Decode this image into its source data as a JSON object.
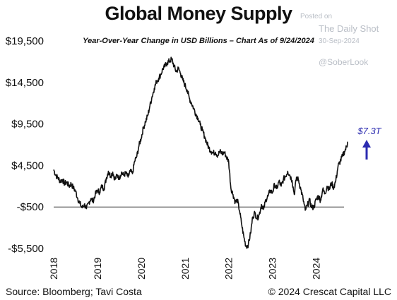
{
  "title": "Global Money Supply",
  "subtitle": "Year-Over-Year Change in USD Billions – Chart As of 9/24/2024",
  "watermark": {
    "posted_on": "Posted on",
    "publisher": "The Daily Shot",
    "date": "30-Sep-2024",
    "handle": "@SoberLook"
  },
  "footer": {
    "source": "Source: Bloomberg; Tavi Costa",
    "copyright": "© 2024 Crescat Capital LLC"
  },
  "colors": {
    "line": "#111111",
    "zero_line": "#333333",
    "annotation": "#2b2bb0"
  },
  "chart_data": {
    "type": "line",
    "title": "Global Money Supply",
    "subtitle": "Year-Over-Year Change in USD Billions – Chart As of 9/24/2024",
    "xlabel": "",
    "ylabel": "",
    "ylim": [
      -5500,
      19500
    ],
    "xlim": [
      2018.0,
      2024.75
    ],
    "y_ticks": [
      -5500,
      -500,
      4500,
      9500,
      14500,
      19500
    ],
    "y_tick_labels": [
      "-$5,500",
      "-$500",
      "$4,500",
      "$9,500",
      "$14,500",
      "$19,500"
    ],
    "x_ticks": [
      2018,
      2019,
      2020,
      2021,
      2022,
      2023,
      2024
    ],
    "x_tick_labels": [
      "2018",
      "2019",
      "2020",
      "2021",
      "2022",
      "2023",
      "2024"
    ],
    "reference_line": {
      "y": -500
    },
    "grid": false,
    "annotation": {
      "text": "$7.3T",
      "arrow": "up",
      "x": 2024.72,
      "y": 7300
    },
    "series": [
      {
        "x": [
          2018.0,
          2018.05,
          2018.1,
          2018.15,
          2018.2,
          2018.25,
          2018.3,
          2018.35,
          2018.4,
          2018.45,
          2018.5,
          2018.55,
          2018.6,
          2018.65,
          2018.7,
          2018.75,
          2018.8,
          2018.85,
          2018.9,
          2018.95,
          2019.0,
          2019.05,
          2019.1,
          2019.15,
          2019.2,
          2019.25,
          2019.3,
          2019.35,
          2019.4,
          2019.45,
          2019.5,
          2019.55,
          2019.6,
          2019.65,
          2019.7,
          2019.75,
          2019.8,
          2019.85,
          2019.9,
          2019.95,
          2020.0,
          2020.05,
          2020.1,
          2020.15,
          2020.2,
          2020.25,
          2020.3,
          2020.35,
          2020.4,
          2020.45,
          2020.5,
          2020.55,
          2020.6,
          2020.65,
          2020.7,
          2020.75,
          2020.8,
          2020.85,
          2020.9,
          2020.95,
          2021.0,
          2021.05,
          2021.1,
          2021.15,
          2021.2,
          2021.25,
          2021.3,
          2021.35,
          2021.4,
          2021.45,
          2021.5,
          2021.55,
          2021.6,
          2021.65,
          2021.7,
          2021.75,
          2021.8,
          2021.85,
          2021.9,
          2021.95,
          2022.0,
          2022.05,
          2022.1,
          2022.15,
          2022.2,
          2022.25,
          2022.3,
          2022.35,
          2022.4,
          2022.45,
          2022.5,
          2022.55,
          2022.6,
          2022.65,
          2022.7,
          2022.75,
          2022.8,
          2022.85,
          2022.9,
          2022.95,
          2023.0,
          2023.05,
          2023.1,
          2023.15,
          2023.2,
          2023.25,
          2023.3,
          2023.35,
          2023.4,
          2023.45,
          2023.5,
          2023.55,
          2023.6,
          2023.65,
          2023.7,
          2023.75,
          2023.8,
          2023.85,
          2023.9,
          2023.95,
          2024.0,
          2024.05,
          2024.1,
          2024.15,
          2024.2,
          2024.25,
          2024.3,
          2024.35,
          2024.4,
          2024.45,
          2024.5,
          2024.55,
          2024.6,
          2024.65,
          2024.7,
          2024.72
        ],
        "values": [
          4000,
          3300,
          3000,
          2600,
          2800,
          2300,
          2500,
          2000,
          2300,
          1800,
          1400,
          500,
          -100,
          -600,
          -200,
          -700,
          0,
          500,
          200,
          1000,
          1500,
          1300,
          2000,
          1700,
          2900,
          3800,
          3200,
          3700,
          2800,
          3300,
          3000,
          3700,
          3300,
          3600,
          3100,
          3800,
          3500,
          5000,
          5600,
          6900,
          7800,
          9000,
          9800,
          10500,
          11700,
          12800,
          13800,
          14600,
          15000,
          15500,
          16200,
          16500,
          16900,
          17100,
          17300,
          16500,
          15800,
          16200,
          15600,
          14800,
          14200,
          13600,
          12600,
          12000,
          11400,
          10700,
          10200,
          9400,
          8700,
          8000,
          7200,
          6600,
          6200,
          6000,
          6100,
          5700,
          6200,
          5900,
          6100,
          5500,
          5000,
          1800,
          1000,
          100,
          300,
          -1000,
          -2700,
          -4200,
          -5300,
          -5000,
          -3700,
          -1700,
          -1200,
          -1900,
          -1400,
          -200,
          -800,
          400,
          800,
          1500,
          1200,
          2200,
          1700,
          2600,
          2000,
          2800,
          3200,
          3800,
          3300,
          2700,
          1000,
          3100,
          2700,
          1600,
          500,
          -900,
          -300,
          300,
          -600,
          -500,
          400,
          800,
          300,
          1600,
          1100,
          2000,
          1600,
          2400,
          1800,
          2700,
          4400,
          5000,
          5600,
          6200,
          6800,
          7300
        ]
      }
    ]
  }
}
